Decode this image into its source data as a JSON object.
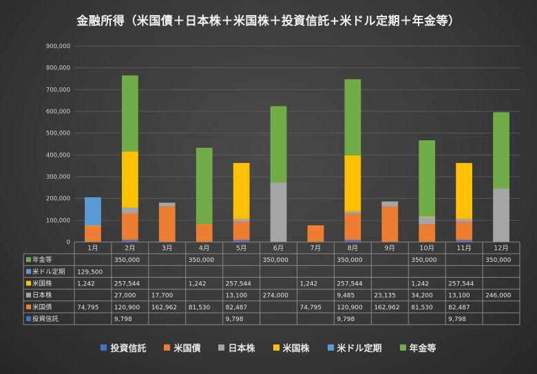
{
  "chart_data": {
    "type": "bar",
    "stacked": true,
    "title": "金融所得（米国債＋日本株＋米国株＋投資信託+米ドル定期＋年金等）",
    "categories": [
      "1月",
      "2月",
      "3月",
      "4月",
      "5月",
      "6月",
      "7月",
      "8月",
      "9月",
      "10月",
      "11月",
      "12月"
    ],
    "ylim": [
      0,
      900000
    ],
    "yticks": [
      "0",
      "100,000",
      "200,000",
      "300,000",
      "400,000",
      "500,000",
      "600,000",
      "700,000",
      "800,000",
      "900,000"
    ],
    "grid": true,
    "legend_position": "bottom",
    "data_table": true,
    "series": [
      {
        "name": "投資信託",
        "color": "#4472c4",
        "values": [
          null,
          9798,
          null,
          null,
          9798,
          null,
          null,
          9798,
          null,
          null,
          9798,
          null
        ],
        "labels": [
          "",
          "9,798",
          "",
          "",
          "9,798",
          "",
          "",
          "9,798",
          "",
          "",
          "9,798",
          ""
        ]
      },
      {
        "name": "米国債",
        "color": "#ed7d31",
        "values": [
          74795,
          120900,
          162962,
          81530,
          82487,
          null,
          74795,
          120900,
          162962,
          81530,
          82487,
          null
        ],
        "labels": [
          "74,795",
          "120,900",
          "162,962",
          "81,530",
          "82,487",
          "",
          "74,795",
          "120,900",
          "162,962",
          "81,530",
          "82,487",
          ""
        ]
      },
      {
        "name": "日本株",
        "color": "#a5a5a5",
        "values": [
          null,
          27000,
          17700,
          null,
          13100,
          274000,
          null,
          9485,
          23135,
          34200,
          13100,
          246000
        ],
        "labels": [
          "",
          "27,000",
          "17,700",
          "",
          "13,100",
          "274,000",
          "",
          "9,485",
          "23,135",
          "34,200",
          "13,100",
          "246,000"
        ]
      },
      {
        "name": "米国株",
        "color": "#ffc000",
        "values": [
          1242,
          257544,
          null,
          1242,
          257544,
          null,
          1242,
          257544,
          null,
          1242,
          257544,
          null
        ],
        "labels": [
          "1,242",
          "257,544",
          "",
          "1,242",
          "257,544",
          "",
          "1,242",
          "257,544",
          "",
          "1,242",
          "257,544",
          ""
        ]
      },
      {
        "name": "米ドル定期",
        "color": "#5b9bd5",
        "values": [
          129500,
          null,
          null,
          null,
          null,
          null,
          null,
          null,
          null,
          null,
          null,
          null
        ],
        "labels": [
          "129,500",
          "",
          "",
          "",
          "",
          "",
          "",
          "",
          "",
          "",
          "",
          ""
        ]
      },
      {
        "name": "年金等",
        "color": "#70ad47",
        "values": [
          null,
          350000,
          null,
          350000,
          null,
          350000,
          null,
          350000,
          null,
          350000,
          null,
          350000
        ],
        "labels": [
          "",
          "350,000",
          "",
          "350,000",
          "",
          "350,000",
          "",
          "350,000",
          "",
          "350,000",
          "",
          "350,000"
        ]
      }
    ],
    "table_row_order": [
      "年金等",
      "米ドル定期",
      "米国株",
      "日本株",
      "米国債",
      "投資信託"
    ]
  }
}
